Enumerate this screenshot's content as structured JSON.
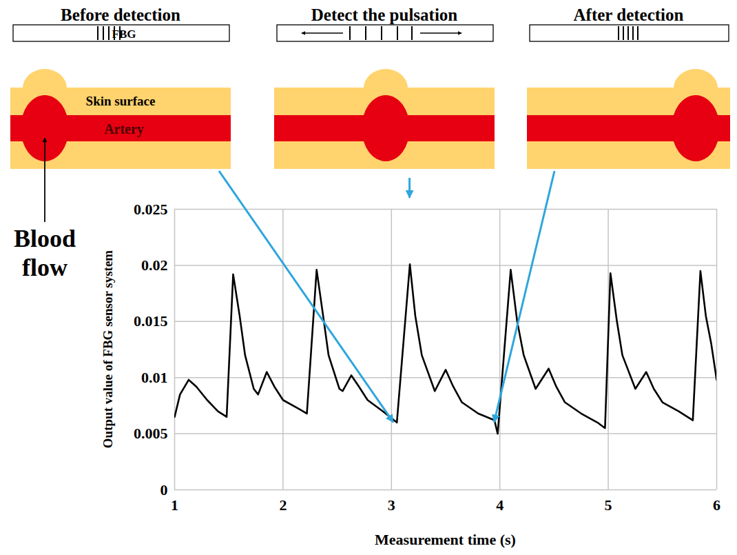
{
  "chart_data": {
    "type": "line",
    "xlabel": "Measurement time (s)",
    "ylabel": "Output value of FBG sensor system",
    "x": [
      1.0,
      1.05,
      1.13,
      1.2,
      1.3,
      1.4,
      1.48,
      1.54,
      1.6,
      1.65,
      1.73,
      1.77,
      1.85,
      1.92,
      2.0,
      2.15,
      2.22,
      2.31,
      2.37,
      2.42,
      2.52,
      2.55,
      2.63,
      2.7,
      2.78,
      2.92,
      3.05,
      3.17,
      3.22,
      3.28,
      3.4,
      3.5,
      3.57,
      3.65,
      3.8,
      3.95,
      3.98,
      4.1,
      4.16,
      4.22,
      4.33,
      4.45,
      4.52,
      4.6,
      4.75,
      4.9,
      4.97,
      5.02,
      5.08,
      5.13,
      5.25,
      5.35,
      5.42,
      5.5,
      5.65,
      5.78,
      5.85,
      5.9,
      5.95,
      6.0
    ],
    "series": [
      {
        "name": "FBG",
        "color": "#000000",
        "values": [
          0.0065,
          0.0085,
          0.0098,
          0.0092,
          0.008,
          0.007,
          0.0065,
          0.0192,
          0.0155,
          0.012,
          0.009,
          0.0085,
          0.0105,
          0.0092,
          0.008,
          0.0072,
          0.0068,
          0.0196,
          0.0155,
          0.012,
          0.009,
          0.0088,
          0.0102,
          0.0092,
          0.008,
          0.007,
          0.006,
          0.0201,
          0.0155,
          0.012,
          0.0088,
          0.0107,
          0.0092,
          0.0078,
          0.0068,
          0.0062,
          0.005,
          0.0196,
          0.015,
          0.012,
          0.009,
          0.0108,
          0.0092,
          0.0078,
          0.0068,
          0.006,
          0.0055,
          0.0193,
          0.015,
          0.012,
          0.009,
          0.0105,
          0.009,
          0.0078,
          0.007,
          0.0062,
          0.0195,
          0.0155,
          0.013,
          0.0098
        ]
      }
    ],
    "xlim": [
      1,
      6
    ],
    "xticks": [
      1,
      2,
      3,
      4,
      5,
      6
    ],
    "ylim": [
      0,
      0.025
    ],
    "yticks": [
      0,
      0.005,
      0.01,
      0.015,
      0.02,
      0.025
    ],
    "grid": true,
    "annotations": [
      {
        "text": "Before detection",
        "x": 3.02,
        "y": 0.006
      },
      {
        "text": "Detect the pulsation",
        "x": 3.17,
        "y": 0.0201
      },
      {
        "text": "After detection",
        "x": 3.95,
        "y": 0.006
      }
    ],
    "labels": {
      "fbg": "FBG",
      "skin": "Skin surface",
      "artery": "Artery",
      "flow": "Blood flow"
    }
  }
}
